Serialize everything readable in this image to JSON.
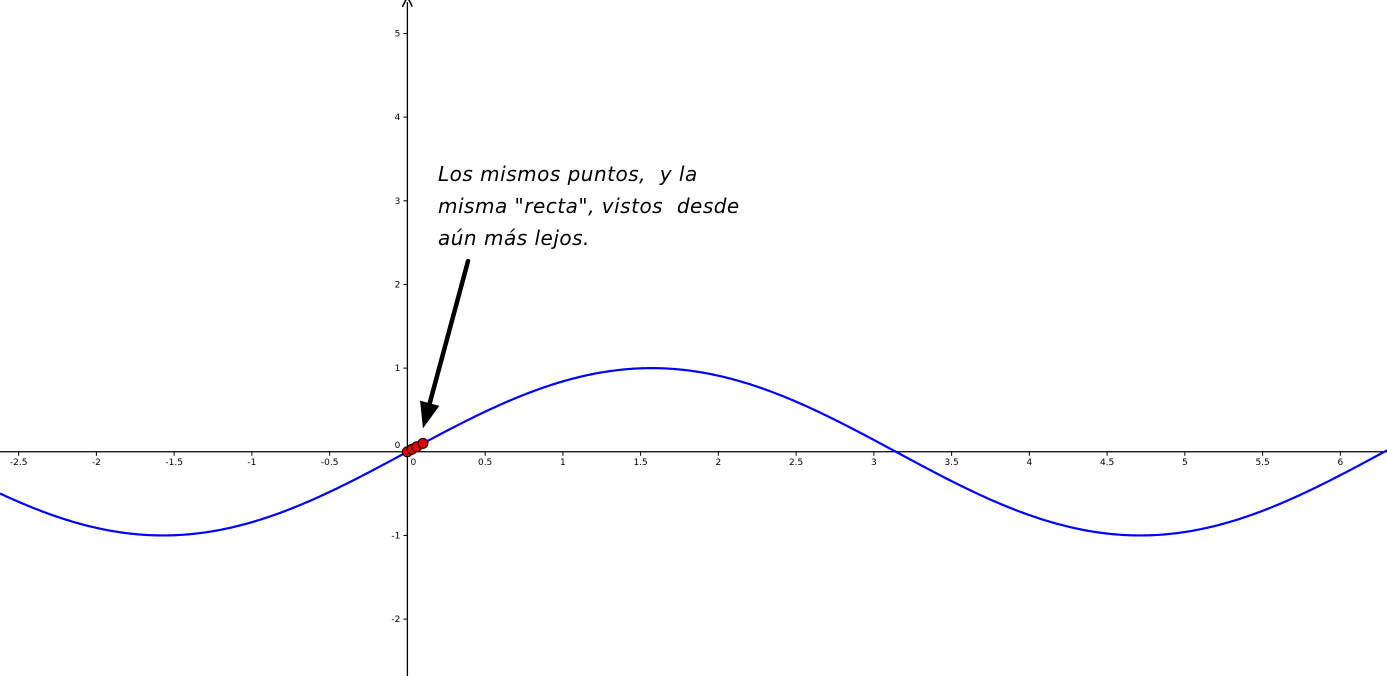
{
  "chart_data": {
    "type": "line",
    "title": "",
    "xlabel": "",
    "ylabel": "",
    "xlim": [
      -2.62,
      6.3
    ],
    "ylim": [
      -2.68,
      5.4
    ],
    "x_ticks": [
      -2.5,
      -2,
      -1.5,
      -1,
      -0.5,
      0,
      0.5,
      1,
      1.5,
      2,
      2.5,
      3,
      3.5,
      4,
      4.5,
      5,
      5.5,
      6
    ],
    "x_tick_labels": [
      "-2.5",
      "-2",
      "-1.5",
      "-1",
      "-0.5",
      "0",
      "0.5",
      "1",
      "1.5",
      "2",
      "2.5",
      "3",
      "3.5",
      "4",
      "4.5",
      "5",
      "5.5",
      "6"
    ],
    "y_ticks": [
      -2,
      -1,
      0,
      1,
      2,
      3,
      4,
      5
    ],
    "y_tick_labels": [
      "-2",
      "-1",
      "0",
      "1",
      "2",
      "3",
      "4",
      "5"
    ],
    "series": [
      {
        "name": "sin(x)",
        "function": "sin",
        "color": "#0000ff"
      }
    ],
    "points": [
      {
        "x": 0.0,
        "y": 0.0
      },
      {
        "x": 0.03,
        "y": 0.03
      },
      {
        "x": 0.06,
        "y": 0.06
      },
      {
        "x": 0.1,
        "y": 0.1
      }
    ],
    "point_color": "#e00000",
    "arrow": {
      "from": [
        0.39,
        2.28
      ],
      "to": [
        0.1,
        0.28
      ]
    }
  },
  "annotation": {
    "lines": [
      "Los mismos puntos,  y la",
      "misma \"recta\", vistos  desde",
      "aún más lejos."
    ]
  }
}
